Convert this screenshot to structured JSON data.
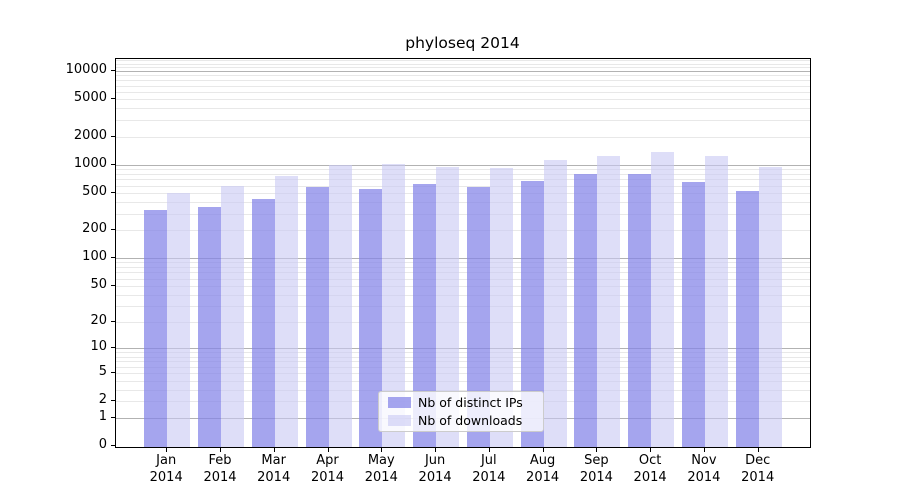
{
  "title": "phyloseq 2014",
  "chart_data": {
    "type": "bar",
    "title": "phyloseq 2014",
    "categories": [
      "Jan",
      "Feb",
      "Mar",
      "Apr",
      "May",
      "Jun",
      "Jul",
      "Aug",
      "Sep",
      "Oct",
      "Nov",
      "Dec"
    ],
    "year": "2014",
    "series": [
      {
        "name": "Nb of distinct IPs",
        "color": "rgba(130,130,232,0.72)",
        "values": [
          331,
          354,
          434,
          585,
          554,
          618,
          580,
          670,
          790,
          790,
          654,
          524
        ]
      },
      {
        "name": "Nb of downloads",
        "color": "rgba(200,200,243,0.6)",
        "values": [
          500,
          598,
          750,
          1005,
          1030,
          945,
          930,
          1123,
          1240,
          1368,
          1240,
          952
        ]
      }
    ],
    "y_scale": "log1p",
    "ylim": [
      0,
      13800
    ],
    "y_ticks": [
      0,
      1,
      2,
      5,
      10,
      20,
      50,
      100,
      200,
      500,
      1000,
      2000,
      5000,
      10000
    ],
    "grid_major_at": [
      1,
      10,
      100,
      1000,
      10000
    ],
    "grid": true,
    "legend_position": "inside-bottom-center"
  },
  "colors": {
    "background": "#ffffff",
    "axis": "#000000",
    "grid_major": "#b2b2b2",
    "grid_minor": "#e8e8e8",
    "legend_border": "#cccccc"
  }
}
